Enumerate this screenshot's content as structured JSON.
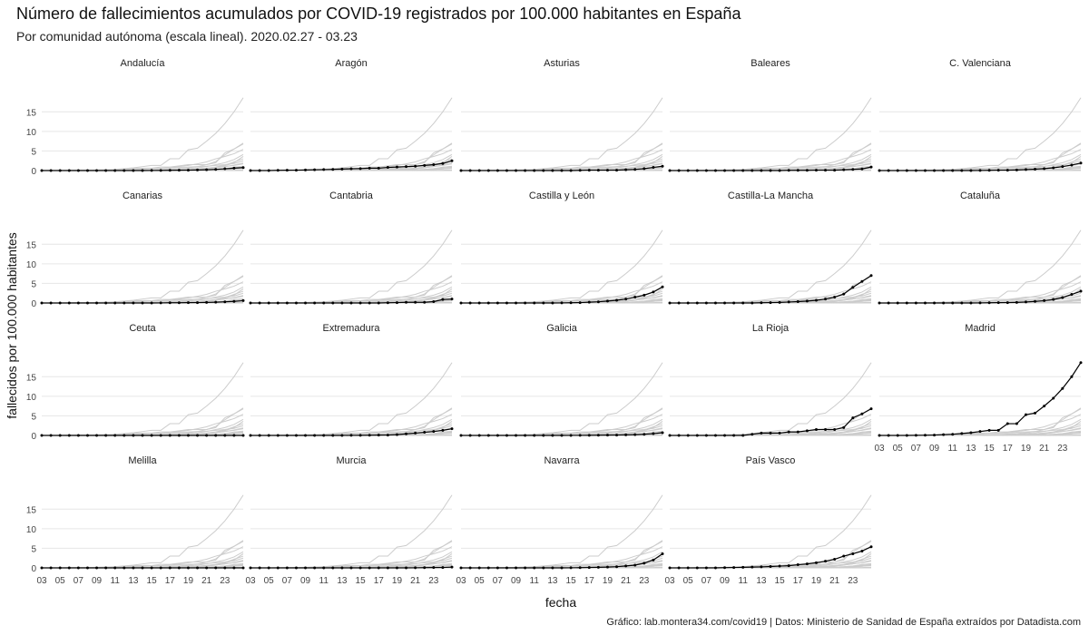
{
  "chart_data": {
    "type": "line",
    "title": "Número de fallecimientos acumulados por COVID-19 registrados por 100.000 habitantes en España",
    "subtitle": "Por comunidad autónoma (escala lineal). 2020.02.27 - 03.23",
    "xlabel": "fecha",
    "ylabel": "fallecidos por 100.000 habitantes",
    "caption": "Gráfico: lab.montera34.com/covid19 | Datos: Ministerio de Sanidad de España extraídos por Datadista.com",
    "x_start_day": 3,
    "x": [
      1,
      2,
      3,
      4,
      5,
      6,
      7,
      8,
      9,
      10,
      11,
      12,
      13,
      14,
      15,
      16,
      17,
      18,
      19,
      20,
      21,
      22,
      23
    ],
    "x_ticks": [
      "03",
      "05",
      "07",
      "09",
      "11",
      "13",
      "15",
      "17",
      "19",
      "21",
      "23"
    ],
    "ylim": [
      0,
      19
    ],
    "y_ticks": [
      0,
      5,
      10,
      15
    ],
    "background_color": "#cccccc",
    "highlight_color": "#000000",
    "grid": true,
    "series": [
      {
        "name": "Andalucía",
        "values": [
          0,
          0,
          0,
          0,
          0,
          0,
          0,
          0,
          0,
          0,
          0,
          0,
          0.02,
          0.03,
          0.05,
          0.08,
          0.1,
          0.15,
          0.2,
          0.3,
          0.45,
          0.6,
          0.75
        ]
      },
      {
        "name": "Aragón",
        "values": [
          0,
          0,
          0,
          0.05,
          0.08,
          0.1,
          0.15,
          0.2,
          0.25,
          0.3,
          0.38,
          0.45,
          0.5,
          0.6,
          0.6,
          0.8,
          0.9,
          1.0,
          1.1,
          1.3,
          1.5,
          1.8,
          2.5
        ]
      },
      {
        "name": "Asturias",
        "values": [
          0,
          0,
          0,
          0,
          0,
          0,
          0,
          0,
          0,
          0,
          0,
          0,
          0,
          0.05,
          0.1,
          0.1,
          0.1,
          0.1,
          0.2,
          0.3,
          0.5,
          0.8,
          1.1
        ]
      },
      {
        "name": "Baleares",
        "values": [
          0,
          0,
          0,
          0,
          0,
          0,
          0,
          0,
          0,
          0,
          0,
          0,
          0,
          0.05,
          0.05,
          0.05,
          0.1,
          0.1,
          0.1,
          0.2,
          0.3,
          0.4,
          0.9
        ]
      },
      {
        "name": "C. Valenciana",
        "values": [
          0,
          0,
          0,
          0,
          0,
          0,
          0,
          0,
          0,
          0,
          0,
          0.02,
          0.05,
          0.1,
          0.1,
          0.15,
          0.25,
          0.35,
          0.5,
          0.7,
          1.0,
          1.4,
          1.9
        ]
      },
      {
        "name": "Canarias",
        "values": [
          0,
          0,
          0,
          0,
          0,
          0,
          0,
          0,
          0,
          0,
          0,
          0,
          0,
          0.02,
          0.05,
          0.05,
          0.08,
          0.1,
          0.15,
          0.2,
          0.3,
          0.4,
          0.6
        ]
      },
      {
        "name": "Cantabria",
        "values": [
          0,
          0,
          0,
          0,
          0,
          0,
          0,
          0,
          0,
          0,
          0,
          0,
          0,
          0,
          0,
          0.05,
          0.1,
          0.17,
          0.17,
          0.17,
          0.35,
          0.9,
          1.0
        ]
      },
      {
        "name": "Castilla y León",
        "values": [
          0,
          0,
          0,
          0,
          0,
          0,
          0,
          0,
          0,
          0,
          0,
          0.02,
          0.05,
          0.1,
          0.2,
          0.3,
          0.5,
          0.7,
          1.0,
          1.5,
          2.0,
          2.8,
          4.1
        ]
      },
      {
        "name": "Castilla-La Mancha",
        "values": [
          0,
          0,
          0,
          0,
          0,
          0,
          0,
          0,
          0,
          0,
          0.05,
          0.1,
          0.15,
          0.25,
          0.35,
          0.5,
          0.7,
          1.0,
          1.5,
          2.3,
          4.0,
          5.5,
          7.0
        ]
      },
      {
        "name": "Cataluña",
        "values": [
          0,
          0,
          0,
          0,
          0,
          0,
          0,
          0,
          0,
          0,
          0,
          0.02,
          0.05,
          0.08,
          0.1,
          0.15,
          0.25,
          0.4,
          0.6,
          0.9,
          1.4,
          2.2,
          3.0
        ]
      },
      {
        "name": "Ceuta",
        "values": [
          0,
          0,
          0,
          0,
          0,
          0,
          0,
          0,
          0,
          0,
          0,
          0,
          0,
          0,
          0,
          0,
          0,
          0,
          0,
          0,
          0,
          0,
          0
        ]
      },
      {
        "name": "Extremadura",
        "values": [
          0,
          0,
          0,
          0,
          0,
          0,
          0,
          0,
          0,
          0,
          0,
          0.02,
          0.03,
          0.05,
          0.08,
          0.1,
          0.2,
          0.4,
          0.6,
          0.8,
          1.0,
          1.3,
          1.7
        ]
      },
      {
        "name": "Galicia",
        "values": [
          0,
          0,
          0,
          0,
          0,
          0,
          0,
          0,
          0,
          0,
          0,
          0,
          0.01,
          0.02,
          0.03,
          0.05,
          0.08,
          0.1,
          0.15,
          0.2,
          0.3,
          0.45,
          0.7
        ]
      },
      {
        "name": "La Rioja",
        "values": [
          0,
          0,
          0,
          0,
          0,
          0,
          0,
          0,
          0,
          0.3,
          0.6,
          0.6,
          0.6,
          0.9,
          0.9,
          1.2,
          1.5,
          1.5,
          1.5,
          2.0,
          4.5,
          5.5,
          6.8
        ]
      },
      {
        "name": "Madrid",
        "values": [
          0,
          0,
          0,
          0,
          0.03,
          0.05,
          0.1,
          0.2,
          0.3,
          0.5,
          0.7,
          1.0,
          1.3,
          1.3,
          3.0,
          3.0,
          5.3,
          5.7,
          7.5,
          9.5,
          12.0,
          15.0,
          18.6
        ]
      },
      {
        "name": "Melilla",
        "values": [
          0,
          0,
          0,
          0,
          0,
          0,
          0,
          0,
          0,
          0,
          0,
          0,
          0,
          0,
          0,
          0,
          0,
          0,
          0,
          0,
          0,
          0,
          0
        ]
      },
      {
        "name": "Murcia",
        "values": [
          0,
          0,
          0,
          0,
          0,
          0,
          0,
          0,
          0,
          0,
          0,
          0,
          0,
          0,
          0,
          0,
          0,
          0,
          0.02,
          0.05,
          0.08,
          0.1,
          0.2
        ]
      },
      {
        "name": "Navarra",
        "values": [
          0,
          0,
          0,
          0,
          0,
          0,
          0,
          0,
          0,
          0,
          0,
          0,
          0.02,
          0.05,
          0.1,
          0.15,
          0.2,
          0.3,
          0.5,
          0.7,
          1.2,
          2.0,
          3.6
        ]
      },
      {
        "name": "País Vasco",
        "values": [
          0,
          0,
          0,
          0,
          0,
          0,
          0.05,
          0.1,
          0.15,
          0.2,
          0.25,
          0.35,
          0.45,
          0.55,
          0.8,
          1.0,
          1.3,
          1.7,
          2.2,
          3.0,
          3.6,
          4.3,
          5.4
        ]
      }
    ]
  }
}
